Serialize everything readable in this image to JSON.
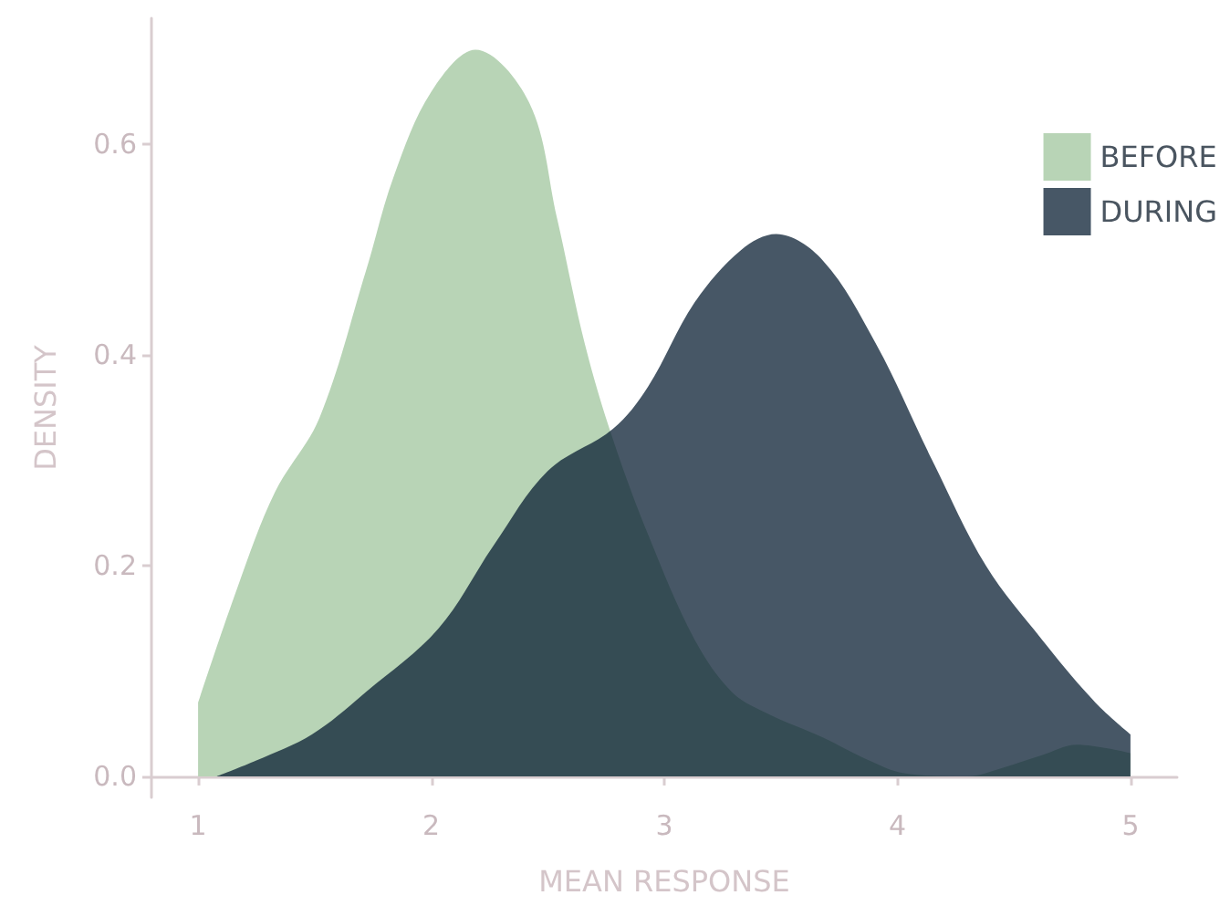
{
  "chart_data": {
    "type": "area",
    "xlabel": "MEAN RESPONSE",
    "ylabel": "DENSITY",
    "xlim": [
      0.8,
      5.2
    ],
    "xticks": [
      1,
      2,
      3,
      4,
      5
    ],
    "ylim": [
      -0.02,
      0.72
    ],
    "yticks": [
      {
        "value": 0,
        "label": "0.0"
      },
      {
        "value": 0.2,
        "label": "0.2"
      },
      {
        "value": 0.4,
        "label": "0.4"
      },
      {
        "value": 0.6,
        "label": "0.6"
      }
    ],
    "grid": false,
    "legend": "top right",
    "series": [
      {
        "name": "BEFORE",
        "color": "#b8d4b6",
        "x": [
          1.0,
          1.17,
          1.33,
          1.52,
          1.72,
          1.84,
          2.0,
          2.19,
          2.42,
          2.54,
          2.66,
          2.78,
          2.93,
          3.13,
          3.29,
          3.44,
          3.68,
          3.87,
          4.03,
          4.3,
          4.45,
          4.62,
          4.77,
          5.0
        ],
        "values": [
          0.07,
          0.18,
          0.27,
          0.34,
          0.48,
          0.57,
          0.65,
          0.69,
          0.64,
          0.53,
          0.41,
          0.32,
          0.23,
          0.13,
          0.08,
          0.06,
          0.037,
          0.016,
          0.003,
          0,
          0.008,
          0.02,
          0.03,
          0.022
        ]
      },
      {
        "name": "DURING",
        "color": "#475766",
        "x": [
          1.08,
          1.25,
          1.49,
          1.72,
          2.03,
          2.27,
          2.5,
          2.78,
          2.93,
          3.13,
          3.33,
          3.48,
          3.68,
          3.91,
          4.15,
          4.38,
          4.62,
          4.85,
          5.0
        ],
        "values": [
          0,
          0.015,
          0.04,
          0.08,
          0.14,
          0.22,
          0.29,
          0.33,
          0.37,
          0.45,
          0.5,
          0.515,
          0.49,
          0.41,
          0.3,
          0.2,
          0.13,
          0.07,
          0.04
        ]
      }
    ]
  }
}
